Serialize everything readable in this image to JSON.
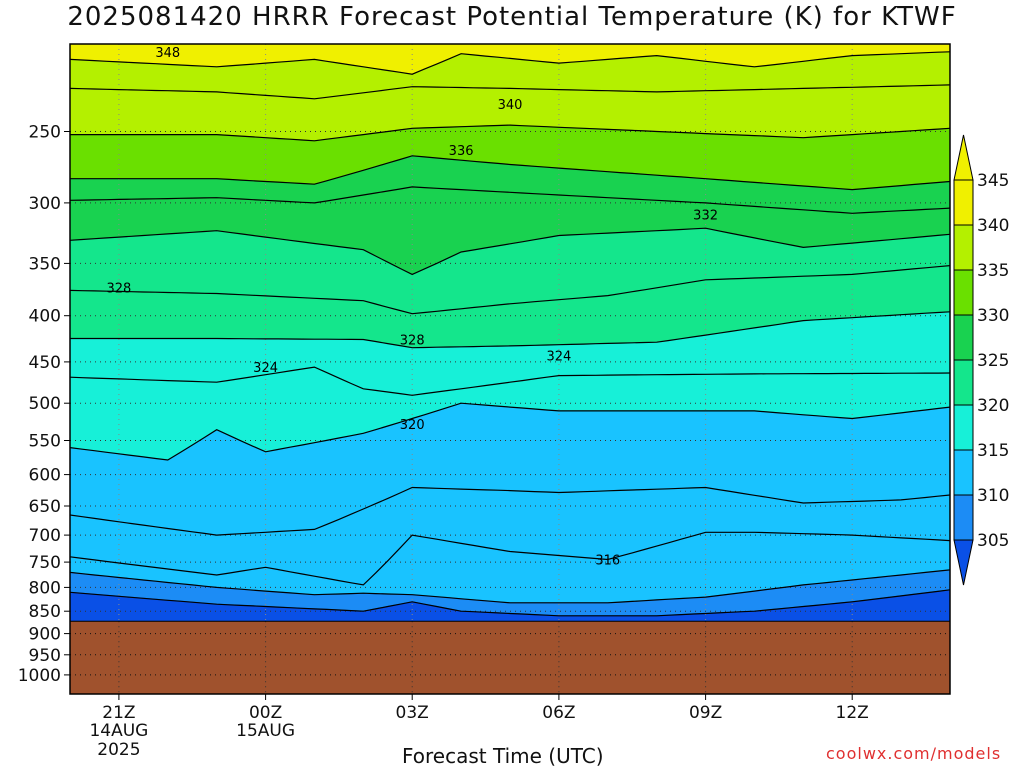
{
  "title": "2025081420 HRRR Forecast Potential Temperature (K) for KTWF",
  "credit": "coolwx.com/models",
  "colors": {
    "terrain": "#a0522d",
    "bands": [
      "#0a50e6",
      "#1c8cf5",
      "#19c3ff",
      "#17f0d8",
      "#14e68c",
      "#19d250",
      "#6ae000",
      "#b4f000",
      "#f0f000"
    ]
  },
  "chart_data": {
    "type": "heatmap",
    "title": "2025081420 HRRR Forecast Potential Temperature (K) for KTWF",
    "xlabel": "Forecast Time (UTC)",
    "ylabel": "",
    "x_ticks": [
      {
        "hour": 1,
        "label": "21Z",
        "sub": [
          "14AUG",
          "2025"
        ]
      },
      {
        "hour": 4,
        "label": "00Z",
        "sub": [
          "15AUG"
        ]
      },
      {
        "hour": 7,
        "label": "03Z",
        "sub": []
      },
      {
        "hour": 10,
        "label": "06Z",
        "sub": []
      },
      {
        "hour": 13,
        "label": "09Z",
        "sub": []
      },
      {
        "hour": 16,
        "label": "12Z",
        "sub": []
      }
    ],
    "xlim": [
      0,
      18
    ],
    "y_ticks": [
      250,
      300,
      350,
      400,
      450,
      500,
      550,
      600,
      650,
      700,
      750,
      800,
      850,
      900,
      950,
      1000
    ],
    "ylim": [
      200,
      1050
    ],
    "y_scale": "log",
    "surface_pressure": 872,
    "colorbar": {
      "levels": [
        305,
        310,
        315,
        320,
        325,
        330,
        335,
        340,
        345
      ],
      "labels": [
        "305",
        "310",
        "315",
        "320",
        "325",
        "330",
        "335",
        "340",
        "345"
      ]
    },
    "contour_labels": [
      {
        "text": "348",
        "hour": 2.0,
        "p": 204
      },
      {
        "text": "340",
        "hour": 9.0,
        "p": 233
      },
      {
        "text": "336",
        "hour": 8.0,
        "p": 262
      },
      {
        "text": "332",
        "hour": 13.0,
        "p": 309
      },
      {
        "text": "328",
        "hour": 1.0,
        "p": 372
      },
      {
        "text": "328",
        "hour": 7.0,
        "p": 425
      },
      {
        "text": "324",
        "hour": 4.0,
        "p": 456
      },
      {
        "text": "324",
        "hour": 10.0,
        "p": 443
      },
      {
        "text": "320",
        "hour": 7.0,
        "p": 527
      },
      {
        "text": "316",
        "hour": 11.0,
        "p": 745
      }
    ],
    "isentropes": [
      {
        "theta": 346,
        "points": [
          [
            0,
            208
          ],
          [
            3,
            212
          ],
          [
            5,
            208
          ],
          [
            7,
            216
          ],
          [
            8,
            205
          ],
          [
            10,
            210
          ],
          [
            12,
            206
          ],
          [
            14,
            212
          ],
          [
            16,
            206
          ],
          [
            18,
            204
          ]
        ]
      },
      {
        "theta": 342,
        "points": [
          [
            0,
            224
          ],
          [
            3,
            226
          ],
          [
            5,
            230
          ],
          [
            7,
            223
          ],
          [
            9,
            224
          ],
          [
            12,
            226
          ],
          [
            15,
            224
          ],
          [
            18,
            222
          ]
        ]
      },
      {
        "theta": 338,
        "points": [
          [
            0,
            252
          ],
          [
            3,
            252
          ],
          [
            5,
            256
          ],
          [
            7,
            248
          ],
          [
            9,
            246
          ],
          [
            12,
            250
          ],
          [
            15,
            254
          ],
          [
            18,
            248
          ]
        ]
      },
      {
        "theta": 334,
        "points": [
          [
            0,
            282
          ],
          [
            3,
            282
          ],
          [
            5,
            286
          ],
          [
            7,
            266
          ],
          [
            9,
            272
          ],
          [
            13,
            282
          ],
          [
            16,
            290
          ],
          [
            18,
            284
          ]
        ]
      },
      {
        "theta": 332,
        "points": [
          [
            0,
            298
          ],
          [
            3,
            296
          ],
          [
            5,
            300
          ],
          [
            7,
            288
          ],
          [
            9,
            292
          ],
          [
            13,
            300
          ],
          [
            16,
            308
          ],
          [
            18,
            304
          ]
        ]
      },
      {
        "theta": 330,
        "points": [
          [
            0,
            330
          ],
          [
            3,
            322
          ],
          [
            6,
            338
          ],
          [
            7,
            360
          ],
          [
            8,
            340
          ],
          [
            10,
            326
          ],
          [
            13,
            320
          ],
          [
            15,
            336
          ],
          [
            18,
            325
          ]
        ]
      },
      {
        "theta": 328,
        "points": [
          [
            0,
            375
          ],
          [
            3,
            378
          ],
          [
            6,
            385
          ],
          [
            7,
            398
          ],
          [
            9,
            388
          ],
          [
            11,
            380
          ],
          [
            13,
            365
          ],
          [
            16,
            360
          ],
          [
            18,
            352
          ]
        ]
      },
      {
        "theta": 326,
        "points": [
          [
            0,
            424
          ],
          [
            3,
            424
          ],
          [
            6,
            425
          ],
          [
            7,
            434
          ],
          [
            9,
            432
          ],
          [
            12,
            428
          ],
          [
            15,
            405
          ],
          [
            18,
            396
          ]
        ]
      },
      {
        "theta": 324,
        "points": [
          [
            0,
            468
          ],
          [
            3,
            474
          ],
          [
            5,
            456
          ],
          [
            6,
            482
          ],
          [
            7,
            490
          ],
          [
            10,
            466
          ],
          [
            14,
            464
          ],
          [
            18,
            463
          ]
        ]
      },
      {
        "theta": 320,
        "points": [
          [
            0,
            560
          ],
          [
            2,
            578
          ],
          [
            3,
            535
          ],
          [
            4,
            566
          ],
          [
            6,
            540
          ],
          [
            7,
            520
          ],
          [
            8,
            500
          ],
          [
            10,
            510
          ],
          [
            14,
            510
          ],
          [
            16,
            520
          ],
          [
            18,
            505
          ]
        ]
      },
      {
        "theta": 318,
        "points": [
          [
            0,
            665
          ],
          [
            3,
            700
          ],
          [
            5,
            690
          ],
          [
            6,
            655
          ],
          [
            7,
            620
          ],
          [
            9,
            625
          ],
          [
            10,
            628
          ],
          [
            13,
            620
          ],
          [
            15,
            645
          ],
          [
            17,
            640
          ],
          [
            18,
            632
          ]
        ]
      },
      {
        "theta": 316,
        "points": [
          [
            0,
            740
          ],
          [
            3,
            775
          ],
          [
            4,
            760
          ],
          [
            6,
            795
          ],
          [
            7,
            700
          ],
          [
            9,
            730
          ],
          [
            11,
            745
          ],
          [
            13,
            695
          ],
          [
            14,
            695
          ],
          [
            16,
            700
          ],
          [
            18,
            710
          ]
        ]
      },
      {
        "theta": 314,
        "points": [
          [
            0,
            770
          ],
          [
            3,
            800
          ],
          [
            5,
            815
          ],
          [
            6,
            812
          ],
          [
            7,
            815
          ],
          [
            9,
            832
          ],
          [
            11,
            832
          ],
          [
            13,
            820
          ],
          [
            15,
            795
          ],
          [
            17,
            775
          ],
          [
            18,
            765
          ]
        ]
      },
      {
        "theta": 312,
        "points": [
          [
            0,
            810
          ],
          [
            3,
            835
          ],
          [
            6,
            850
          ],
          [
            7,
            830
          ],
          [
            8,
            850
          ],
          [
            10,
            860
          ],
          [
            12,
            860
          ],
          [
            14,
            850
          ],
          [
            16,
            830
          ],
          [
            18,
            805
          ]
        ]
      }
    ],
    "grid": true
  },
  "labels": {
    "xlabel": "Forecast Time (UTC)"
  }
}
